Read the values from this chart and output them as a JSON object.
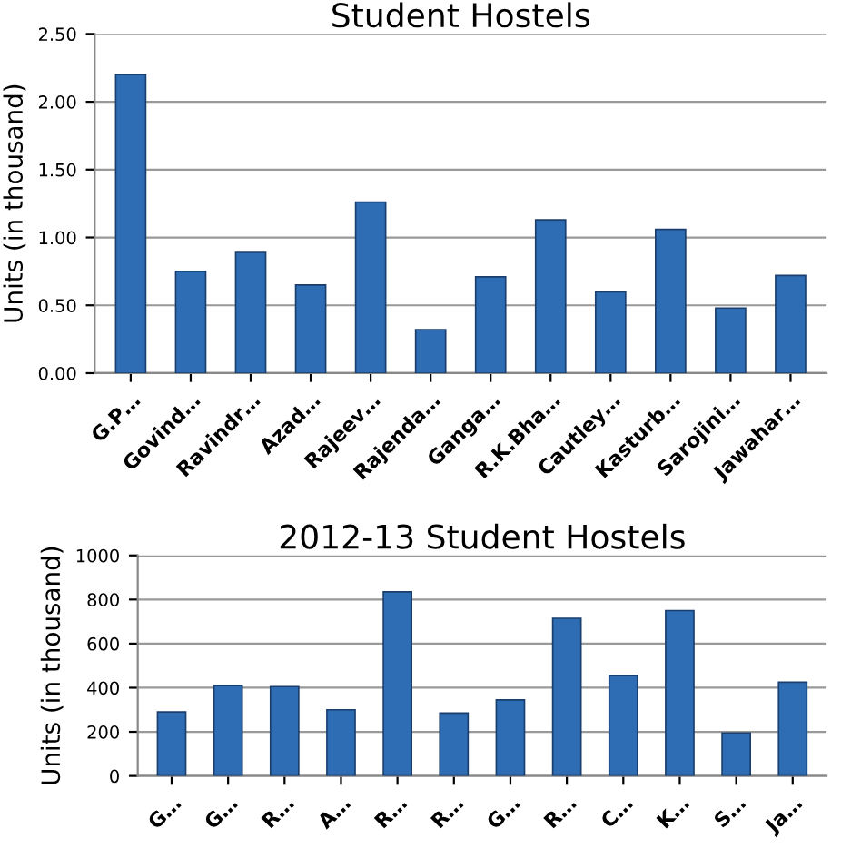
{
  "chart_data": [
    {
      "type": "bar",
      "title": "Student Hostels",
      "ylabel": "Units (in thousand)",
      "categories": [
        "G.P…",
        "Govind…",
        "Ravindr…",
        "Azad…",
        "Rajeev…",
        "Rajenda…",
        "Ganga…",
        "R.K.Bha…",
        "Cautley…",
        "Kasturb…",
        "Sarojini…",
        "Jawahar…"
      ],
      "values": [
        2.2,
        0.75,
        0.89,
        0.65,
        1.26,
        0.32,
        0.71,
        1.13,
        0.6,
        1.06,
        0.48,
        0.72
      ],
      "color": "#2e6db4",
      "ylim": [
        0,
        2.5
      ],
      "yticks": [
        {
          "value": 0,
          "label": "0.00"
        },
        {
          "value": 0.5,
          "label": "0.50"
        },
        {
          "value": 1,
          "label": "1.00"
        },
        {
          "value": 1.5,
          "label": "1.50"
        },
        {
          "value": 2,
          "label": "2.00"
        },
        {
          "value": 2.5,
          "label": "2.50"
        }
      ],
      "grid": "y"
    },
    {
      "type": "bar",
      "title": "2012-13 Student Hostels",
      "ylabel": "Units (in thousand)",
      "categories": [
        "G…",
        "G…",
        "R…",
        "A…",
        "R…",
        "R…",
        "G…",
        "R…",
        "C…",
        "K…",
        "S…",
        "Ja…"
      ],
      "values": [
        290,
        410,
        405,
        300,
        835,
        285,
        345,
        715,
        455,
        750,
        195,
        425
      ],
      "color": "#2e6db4",
      "ylim": [
        0,
        1000
      ],
      "yticks": [
        0,
        200,
        400,
        600,
        800,
        1000
      ],
      "grid": "y"
    }
  ]
}
